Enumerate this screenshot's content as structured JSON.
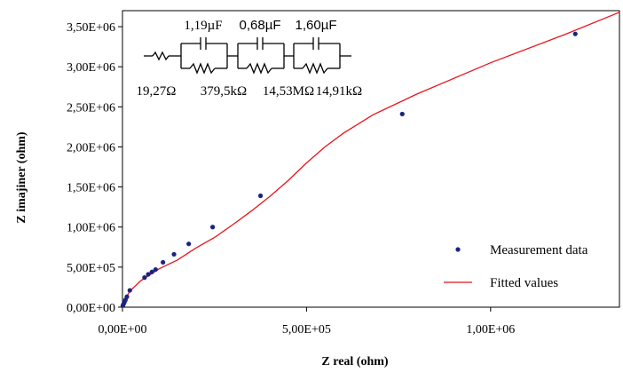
{
  "chart_data": {
    "type": "scatter",
    "xlabel": "Z real (ohm)",
    "ylabel": "Z imajiner (ohm)",
    "xlim": [
      0,
      1350000
    ],
    "ylim": [
      0,
      3700000
    ],
    "x_ticks": [
      0,
      500000,
      1000000
    ],
    "x_tick_labels": [
      "0,00E+00",
      "5,00E+05",
      "1,00E+06"
    ],
    "y_ticks": [
      0,
      500000,
      1000000,
      1500000,
      2000000,
      2500000,
      3000000,
      3500000
    ],
    "y_tick_labels": [
      "0,00E+00",
      "5,00E+05",
      "1,00E+06",
      "1,50E+06",
      "2,00E+06",
      "2,50E+06",
      "3,00E+06",
      "3,50E+06"
    ],
    "grid": false,
    "legend_position": "bottom-right",
    "series": [
      {
        "name": "Measurement data",
        "kind": "scatter",
        "color": "#1a237e",
        "x": [
          1000,
          3000,
          5000,
          8000,
          12000,
          20000,
          60000,
          70000,
          80000,
          90000,
          110000,
          140000,
          180000,
          245000,
          375000,
          760000,
          1230000
        ],
        "y": [
          20000,
          40000,
          60000,
          90000,
          130000,
          210000,
          370000,
          410000,
          440000,
          470000,
          560000,
          660000,
          790000,
          1000000,
          1390000,
          2410000,
          3410000
        ]
      },
      {
        "name": "Fitted values",
        "kind": "line",
        "color": "#e8141b",
        "x": [
          0,
          5000,
          20000,
          50000,
          100000,
          150000,
          200000,
          250000,
          300000,
          350000,
          400000,
          450000,
          500000,
          550000,
          600000,
          680000,
          800000,
          1000000,
          1200000,
          1350000
        ],
        "y": [
          0,
          80000,
          200000,
          330000,
          480000,
          590000,
          740000,
          870000,
          1030000,
          1200000,
          1380000,
          1580000,
          1800000,
          2000000,
          2170000,
          2400000,
          2660000,
          3050000,
          3400000,
          3680000
        ]
      }
    ],
    "circuit": {
      "capacitor_labels": [
        "1,19µF",
        "0,68µF",
        "1,60µF"
      ],
      "resistor_labels": [
        "19,27Ω",
        "379,5kΩ",
        "14,53MΩ",
        "14,91kΩ"
      ]
    }
  }
}
